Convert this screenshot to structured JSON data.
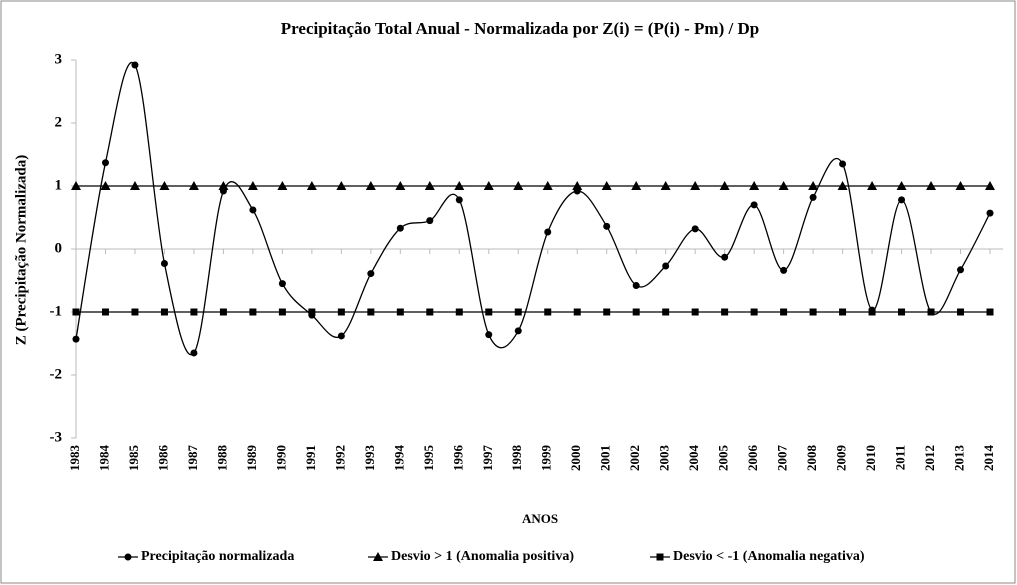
{
  "chart_data": {
    "type": "line",
    "title": "Precipitação Total Anual - Normalizada por Z(i) = (P(i) - Pm) / Dp",
    "x_label": "ANOS",
    "y_label": "Z (Precipitação Normalizada)",
    "categories": [
      "1983",
      "1984",
      "1985",
      "1986",
      "1987",
      "1988",
      "1989",
      "1990",
      "1991",
      "1992",
      "1993",
      "1994",
      "1995",
      "1996",
      "1997",
      "1998",
      "1999",
      "2000",
      "2001",
      "2002",
      "2003",
      "2004",
      "2005",
      "2006",
      "2007",
      "2008",
      "2009",
      "2010",
      "2011",
      "2012",
      "2013",
      "2014"
    ],
    "series": [
      {
        "name": "Precipitação normalizada",
        "color": "#000000",
        "marker": "circle",
        "smooth": true,
        "values": [
          -1.43,
          1.37,
          2.92,
          -0.23,
          -1.65,
          0.92,
          0.62,
          -0.55,
          -1.05,
          -1.38,
          -0.39,
          0.33,
          0.45,
          0.78,
          -1.36,
          -1.3,
          0.27,
          0.92,
          0.36,
          -0.58,
          -0.27,
          0.32,
          -0.13,
          0.7,
          -0.34,
          0.82,
          1.35,
          -0.97,
          0.78,
          -1.0,
          -0.33,
          0.57
        ]
      },
      {
        "name": "Desvio > 1 (Anomalia positiva)",
        "color": "#000000",
        "marker": "triangle",
        "smooth": false,
        "values": [
          1,
          1,
          1,
          1,
          1,
          1,
          1,
          1,
          1,
          1,
          1,
          1,
          1,
          1,
          1,
          1,
          1,
          1,
          1,
          1,
          1,
          1,
          1,
          1,
          1,
          1,
          1,
          1,
          1,
          1,
          1,
          1
        ]
      },
      {
        "name": "Desvio < -1 (Anomalia negativa)",
        "color": "#000000",
        "marker": "square",
        "smooth": false,
        "values": [
          -1,
          -1,
          -1,
          -1,
          -1,
          -1,
          -1,
          -1,
          -1,
          -1,
          -1,
          -1,
          -1,
          -1,
          -1,
          -1,
          -1,
          -1,
          -1,
          -1,
          -1,
          -1,
          -1,
          -1,
          -1,
          -1,
          -1,
          -1,
          -1,
          -1,
          -1,
          -1
        ]
      }
    ],
    "ylim": [
      -3,
      3
    ],
    "yticks": [
      -3,
      -2,
      -1,
      0,
      1,
      2,
      3
    ],
    "grid": false,
    "legend": "bottom"
  }
}
